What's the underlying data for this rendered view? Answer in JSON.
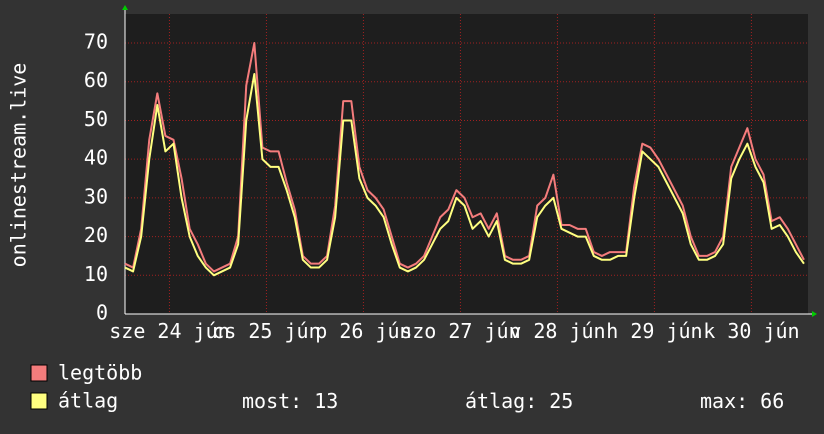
{
  "chart_data": {
    "type": "line",
    "y_label": "onlinestream.live",
    "x": [
      0,
      2,
      4,
      6,
      8,
      10,
      12,
      14,
      16,
      18,
      20,
      22,
      24,
      26,
      28,
      30,
      32,
      34,
      36,
      38,
      40,
      42,
      44,
      46,
      48,
      50,
      52,
      54,
      56,
      58,
      60,
      62,
      64,
      66,
      68,
      70,
      72,
      74,
      76,
      78,
      80,
      82,
      84,
      86,
      88,
      90,
      92,
      94,
      96,
      98,
      100,
      102,
      104,
      106,
      108,
      110,
      112,
      114,
      116,
      118,
      120,
      122,
      124,
      126,
      128,
      130,
      132,
      134,
      136,
      138,
      140,
      142,
      144,
      146,
      148,
      150,
      152,
      154,
      156,
      158,
      160,
      162,
      164,
      166,
      168
    ],
    "xlim": [
      0,
      169
    ],
    "xticks": [
      {
        "value": 11,
        "label": "sze 24 jún"
      },
      {
        "value": 35,
        "label": "cs 25 jún"
      },
      {
        "value": 59,
        "label": "p 26 jún"
      },
      {
        "value": 83,
        "label": "szo 27 jún"
      },
      {
        "value": 107,
        "label": "v 28 jún"
      },
      {
        "value": 131,
        "label": "h 29 jún"
      },
      {
        "value": 155,
        "label": "k 30 jún"
      }
    ],
    "ylim": [
      0,
      77.5
    ],
    "yticks": [
      0,
      10,
      20,
      30,
      40,
      50,
      60,
      70
    ],
    "grid": true,
    "series": [
      {
        "name": "legtöbb",
        "color": "#f47c7c",
        "values": [
          13,
          12,
          22,
          45,
          57,
          46,
          45,
          35,
          22,
          18,
          13,
          11,
          12,
          13,
          20,
          59,
          70,
          43,
          42,
          42,
          34,
          27,
          15,
          13,
          13,
          15,
          28,
          55,
          55,
          38,
          32,
          30,
          27,
          20,
          13,
          12,
          13,
          15,
          20,
          25,
          27,
          32,
          30,
          25,
          26,
          22,
          26,
          15,
          14,
          14,
          15,
          28,
          30,
          36,
          23,
          23,
          22,
          22,
          16,
          15,
          16,
          16,
          16,
          33,
          44,
          43,
          40,
          36,
          32,
          28,
          20,
          15,
          15,
          16,
          20,
          38,
          43,
          48,
          40,
          36,
          24,
          25,
          22,
          18,
          14
        ]
      },
      {
        "name": "átlag",
        "color": "#ffff80",
        "values": [
          12,
          11,
          20,
          40,
          54,
          42,
          44,
          30,
          20,
          15,
          12,
          10,
          11,
          12,
          18,
          50,
          62,
          40,
          38,
          38,
          32,
          25,
          14,
          12,
          12,
          14,
          25,
          50,
          50,
          35,
          30,
          28,
          25,
          18,
          12,
          11,
          12,
          14,
          18,
          22,
          24,
          30,
          28,
          22,
          24,
          20,
          24,
          14,
          13,
          13,
          14,
          25,
          28,
          30,
          22,
          21,
          20,
          20,
          15,
          14,
          14,
          15,
          15,
          30,
          42,
          40,
          38,
          34,
          30,
          26,
          18,
          14,
          14,
          15,
          18,
          35,
          40,
          44,
          38,
          34,
          22,
          23,
          20,
          16,
          13
        ]
      }
    ],
    "stats": [
      {
        "label": "most:",
        "value": 13
      },
      {
        "label": "átlag:",
        "value": 25
      },
      {
        "label": "max:",
        "value": 66
      }
    ]
  }
}
